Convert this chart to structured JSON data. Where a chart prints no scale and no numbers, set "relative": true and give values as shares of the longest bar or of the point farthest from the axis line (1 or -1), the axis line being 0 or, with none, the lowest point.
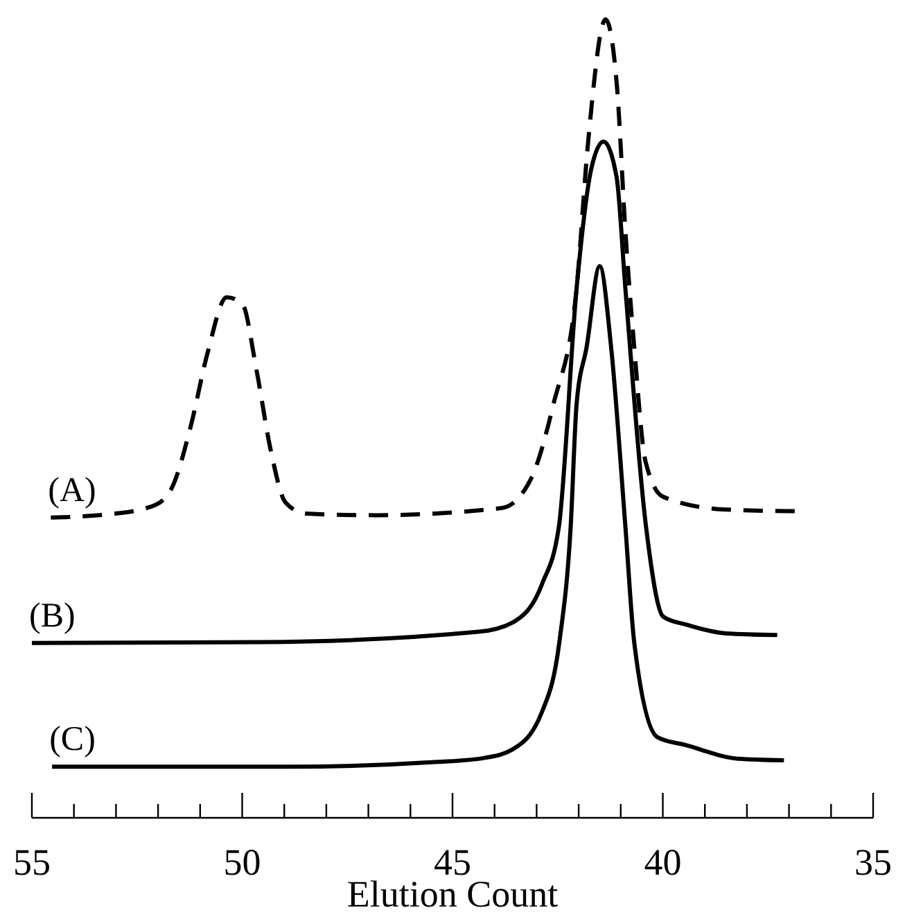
{
  "chart_data": {
    "type": "line",
    "xlabel": "Elution Count",
    "relative": true,
    "xlim": [
      55,
      35
    ],
    "xticks": [
      55,
      {
        "value": 54,
        "label": null
      },
      {
        "value": 53,
        "label": null
      },
      {
        "value": 52,
        "label": null
      },
      {
        "value": 51,
        "label": null
      },
      50,
      {
        "value": 49,
        "label": null
      },
      {
        "value": 48,
        "label": null
      },
      {
        "value": 47,
        "label": null
      },
      {
        "value": 46,
        "label": null
      },
      45,
      {
        "value": 44,
        "label": null
      },
      {
        "value": 43,
        "label": null
      },
      {
        "value": 42,
        "label": null
      },
      {
        "value": 41,
        "label": null
      },
      40,
      {
        "value": 39,
        "label": null
      },
      {
        "value": 38,
        "label": null
      },
      {
        "value": 37,
        "label": null
      },
      {
        "value": 36,
        "label": null
      },
      35
    ],
    "grid": false,
    "marker": "none",
    "series": [
      {
        "name": "(A)",
        "color": "#000000",
        "line_style": "dashed",
        "x": [
          54.55,
          53.02,
          52.06,
          51.64,
          51.23,
          50.82,
          50.37,
          50.0,
          49.66,
          49.32,
          48.97,
          48.49,
          46.85,
          43.83,
          43.14,
          42.6,
          42.05,
          41.78,
          41.36,
          41.09,
          40.89,
          40.68,
          40.41,
          39.99,
          38.49,
          36.84
        ],
        "values": [
          0.376,
          0.381,
          0.392,
          0.417,
          0.489,
          0.583,
          0.652,
          0.644,
          0.561,
          0.46,
          0.395,
          0.381,
          0.379,
          0.388,
          0.424,
          0.518,
          0.663,
          0.844,
          1.0,
          0.916,
          0.735,
          0.59,
          0.446,
          0.402,
          0.386,
          0.384
        ]
      },
      {
        "name": "(B)",
        "color": "#000000",
        "line_style": "solid",
        "x": [
          55.0,
          49.59,
          44.38,
          43.56,
          42.87,
          42.47,
          42.05,
          41.7,
          41.41,
          41.1,
          40.89,
          40.4,
          39.99,
          39.45,
          38.49,
          37.28
        ],
        "values": [
          0.219,
          0.22,
          0.233,
          0.245,
          0.293,
          0.365,
          0.663,
          0.813,
          0.847,
          0.803,
          0.663,
          0.365,
          0.252,
          0.242,
          0.231,
          0.229
        ]
      },
      {
        "name": "(C)",
        "color": "#000000",
        "line_style": "solid",
        "x": [
          54.52,
          48.9,
          45.34,
          44.24,
          43.56,
          42.87,
          42.46,
          42.19,
          42.05,
          41.81,
          41.5,
          41.23,
          40.89,
          40.68,
          40.13,
          39.45,
          38.21,
          37.12
        ],
        "values": [
          0.064,
          0.064,
          0.07,
          0.075,
          0.086,
          0.133,
          0.22,
          0.365,
          0.518,
          0.59,
          0.691,
          0.59,
          0.365,
          0.22,
          0.101,
          0.091,
          0.074,
          0.072
        ]
      }
    ]
  }
}
